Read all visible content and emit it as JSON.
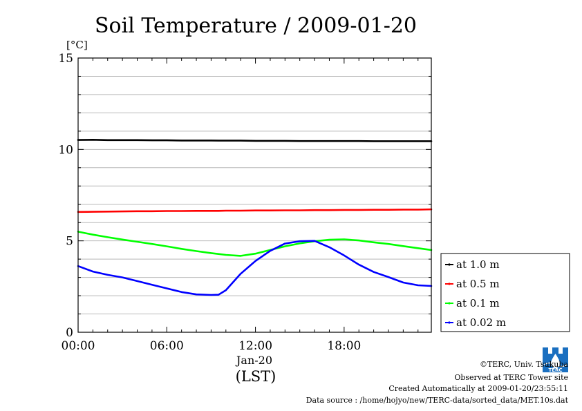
{
  "chart_data": {
    "type": "line",
    "title": "Soil Temperature / 2009-01-20",
    "ylabel": "[°C]",
    "xlabel": "Jan-20",
    "x_unit_label": "(LST)",
    "ylim": [
      0,
      15
    ],
    "xlim_hours": [
      0,
      23.9
    ],
    "yticks": [
      "0",
      "5",
      "10",
      "15"
    ],
    "ytick_values": [
      0,
      5,
      10,
      15
    ],
    "xticks": [
      "00:00",
      "06:00",
      "12:00",
      "18:00"
    ],
    "xtick_values": [
      0,
      6,
      12,
      18
    ],
    "grid": true,
    "legend_position": "right",
    "x": [
      0,
      1,
      2,
      3,
      4,
      5,
      6,
      7,
      8,
      9,
      9.5,
      10,
      11,
      12,
      13,
      14,
      15,
      16,
      17,
      18,
      19,
      20,
      21,
      22,
      23,
      23.9
    ],
    "series": [
      {
        "name": "at 1.0 m",
        "color": "#000000",
        "values": [
          10.52,
          10.53,
          10.51,
          10.51,
          10.51,
          10.5,
          10.5,
          10.49,
          10.49,
          10.49,
          10.48,
          10.48,
          10.48,
          10.47,
          10.47,
          10.47,
          10.46,
          10.46,
          10.46,
          10.46,
          10.46,
          10.45,
          10.45,
          10.45,
          10.45,
          10.45
        ]
      },
      {
        "name": "at 0.5 m",
        "color": "#ff0000",
        "values": [
          6.58,
          6.59,
          6.6,
          6.61,
          6.62,
          6.62,
          6.63,
          6.63,
          6.64,
          6.64,
          6.64,
          6.65,
          6.65,
          6.66,
          6.66,
          6.67,
          6.67,
          6.68,
          6.68,
          6.69,
          6.69,
          6.7,
          6.7,
          6.71,
          6.71,
          6.72
        ]
      },
      {
        "name": "at 0.1 m",
        "color": "#00ff00",
        "values": [
          5.5,
          5.34,
          5.2,
          5.07,
          4.95,
          4.83,
          4.7,
          4.56,
          4.44,
          4.33,
          4.28,
          4.23,
          4.18,
          4.3,
          4.5,
          4.7,
          4.86,
          4.98,
          5.06,
          5.08,
          5.02,
          4.92,
          4.83,
          4.71,
          4.6,
          4.5
        ]
      },
      {
        "name": "at 0.02 m",
        "color": "#0000ff",
        "values": [
          3.62,
          3.32,
          3.14,
          3.0,
          2.8,
          2.6,
          2.4,
          2.2,
          2.07,
          2.04,
          2.05,
          2.3,
          3.2,
          3.9,
          4.45,
          4.85,
          4.98,
          5.0,
          4.65,
          4.2,
          3.7,
          3.3,
          3.02,
          2.72,
          2.57,
          2.53
        ]
      }
    ]
  },
  "footer": {
    "logo_text": "TERC",
    "copyright": "©TERC, Univ. Tsukuba",
    "observed": "Observed at TERC Tower site",
    "created": "Created Automatically at 2009-01-20/23:55:11",
    "source": "Data source : /home/hojyo/new/TERC-data/sorted_data/MET.10s.dat"
  }
}
